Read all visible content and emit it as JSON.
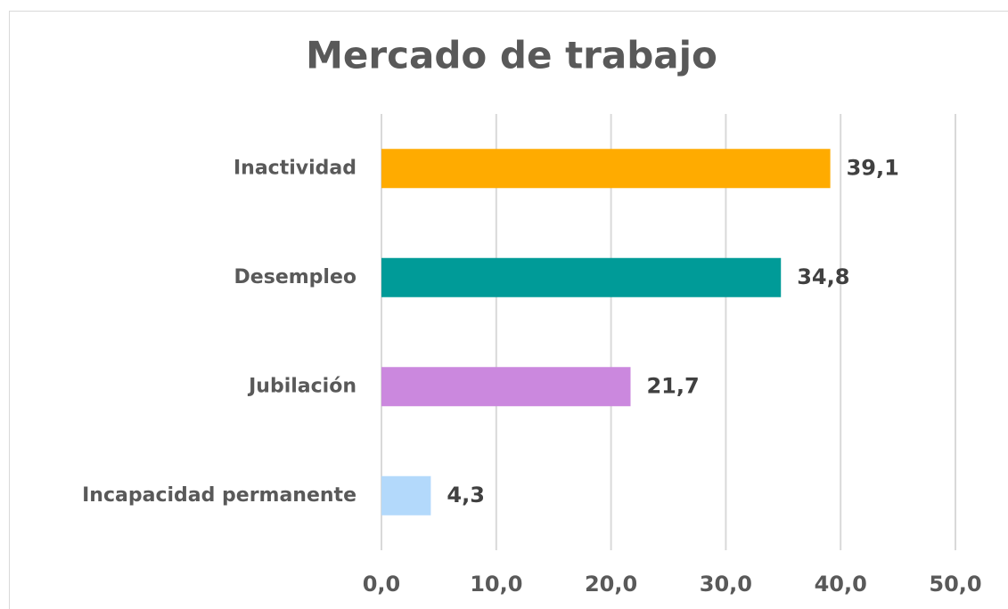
{
  "chart_data": {
    "type": "bar",
    "orientation": "horizontal",
    "title": "Mercado de trabajo",
    "categories": [
      "Inactividad",
      "Desempleo",
      "Jubilación",
      "Incapacidad permanente"
    ],
    "values": [
      39.1,
      34.8,
      21.7,
      4.3
    ],
    "value_labels": [
      "39,1",
      "34,8",
      "21,7",
      "4,3"
    ],
    "colors": [
      "#ffab00",
      "#009b98",
      "#cb88de",
      "#b3d9fb"
    ],
    "xlim": [
      0,
      50
    ],
    "xticks": [
      {
        "value": 0,
        "label": "0,0"
      },
      {
        "value": 10,
        "label": "10,0"
      },
      {
        "value": 20,
        "label": "20,0"
      },
      {
        "value": 30,
        "label": "30,0"
      },
      {
        "value": 40,
        "label": "40,0"
      },
      {
        "value": 50,
        "label": "50,0"
      }
    ],
    "grid": true
  }
}
